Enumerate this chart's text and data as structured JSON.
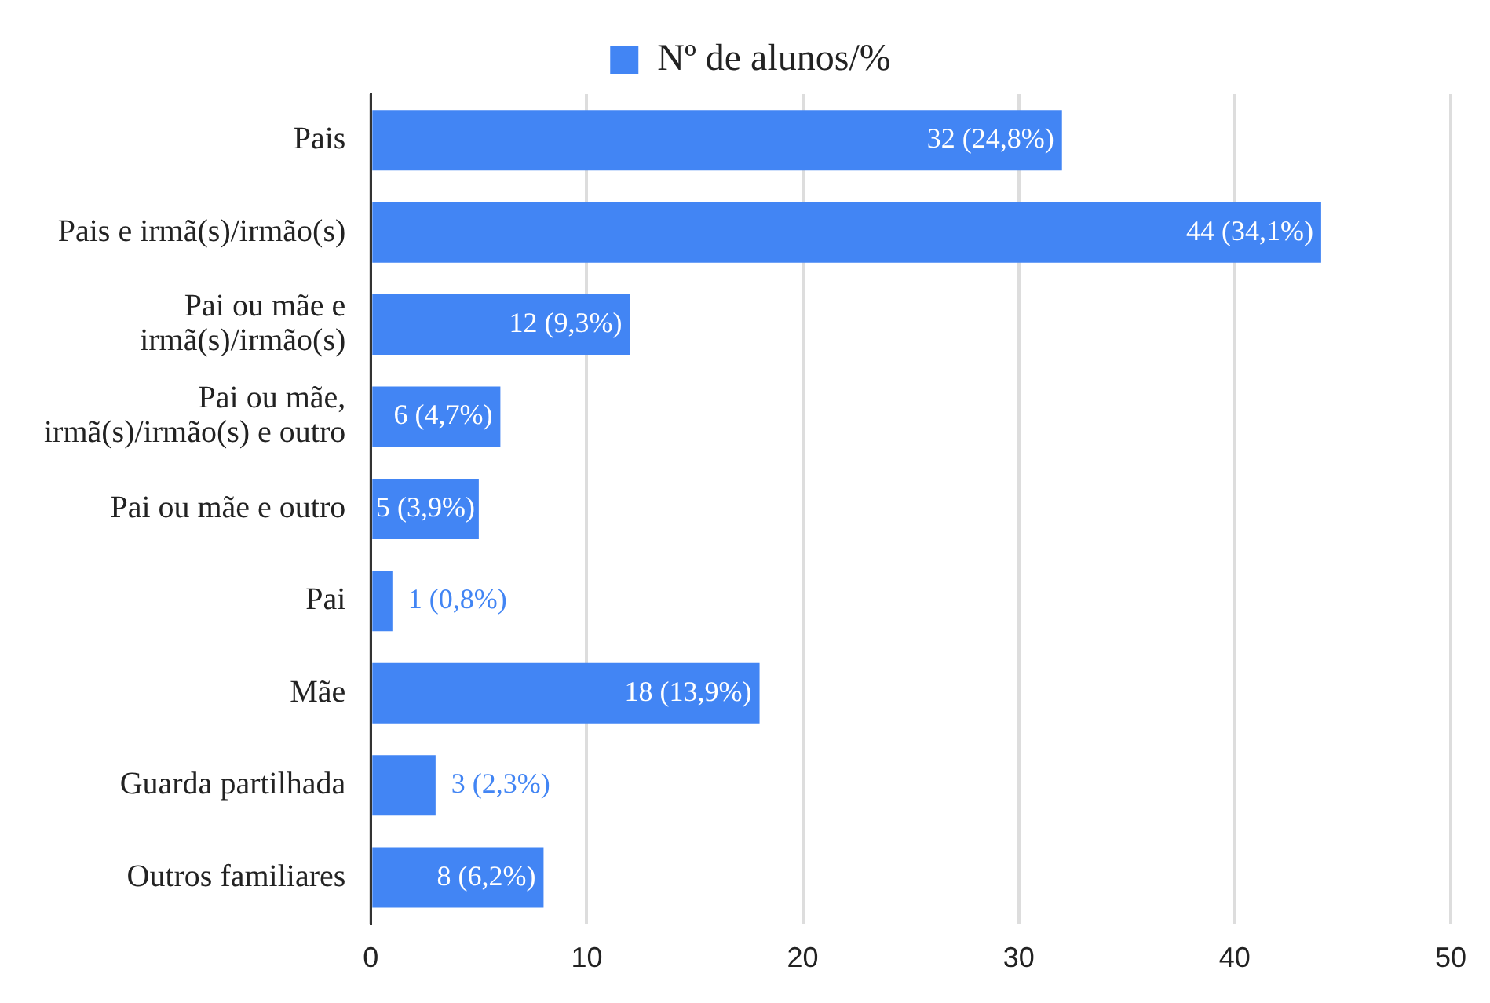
{
  "chart_data": {
    "type": "bar",
    "orientation": "horizontal",
    "categories": [
      "Pais",
      "Pais e irmã(s)/irmão(s)",
      "Pai ou mãe e irmã(s)/irmão(s)",
      "Pai ou mãe, irmã(s)/irmão(s) e outro",
      "Pai ou mãe e outro",
      "Pai",
      "Mãe",
      "Guarda partilhada",
      "Outros familiares"
    ],
    "series": [
      {
        "name": "Nº de alunos/%",
        "color": "#4285f4",
        "values": [
          32,
          44,
          12,
          6,
          5,
          1,
          18,
          3,
          8
        ],
        "value_labels": [
          "32 (24,8%)",
          "44 (34,1%)",
          "12 (9,3%)",
          "6 (4,7%)",
          "5 (3,9%)",
          "1 (0,8%)",
          "18 (13,9%)",
          "3 (2,3%)",
          "8 (6,2%)"
        ]
      }
    ],
    "xlim": [
      0,
      50
    ],
    "xticks": [
      0,
      10,
      20,
      30,
      40,
      50
    ],
    "grid": "x",
    "legend": "top"
  }
}
